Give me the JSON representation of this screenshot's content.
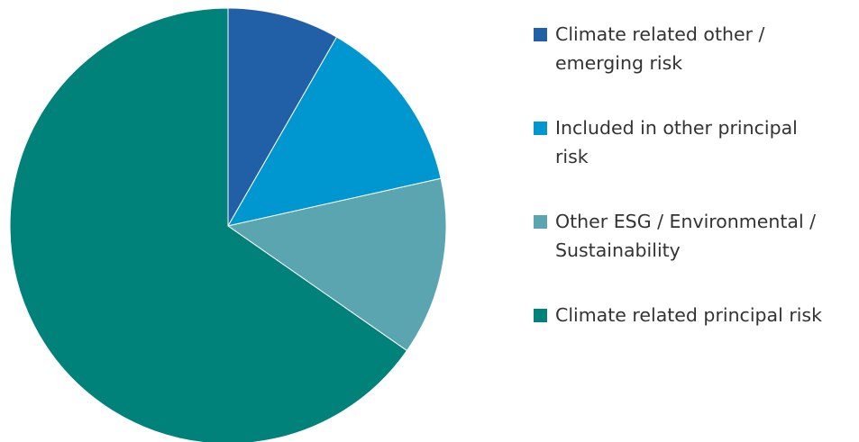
{
  "chart_data": {
    "type": "pie",
    "title": "",
    "start_angle_deg": 0,
    "direction": "clockwise",
    "slices": [
      {
        "label": "Climate related other / emerging risk",
        "value": 8.3,
        "color": "#215FA6"
      },
      {
        "label": "Included in other principal risk",
        "value": 13.2,
        "color": "#0097D1"
      },
      {
        "label": "Other ESG / Environmental / Sustainability",
        "value": 13.2,
        "color": "#5BA5B1"
      },
      {
        "label": "Climate related principal risk",
        "value": 65.3,
        "color": "#00817A"
      }
    ],
    "legend_position": "right"
  },
  "legend": {
    "items": [
      {
        "line1": "Climate related other /",
        "line2": "emerging risk",
        "color": "#215FA6"
      },
      {
        "line1": "Included in other principal",
        "line2": "risk",
        "color": "#0097D1"
      },
      {
        "line1": "Other ESG / Environmental /",
        "line2": "Sustainability",
        "color": "#5BA5B1"
      },
      {
        "line1": "Climate related principal risk",
        "line2": "",
        "color": "#00817A"
      }
    ]
  }
}
